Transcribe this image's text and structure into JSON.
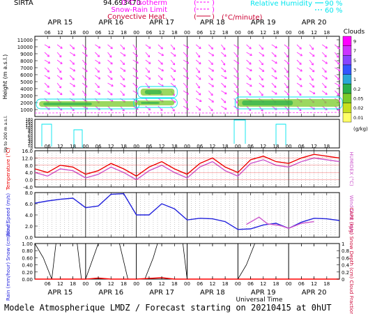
{
  "header": {
    "site": "SIRTA",
    "coords": "94.693470",
    "legend_mid": [
      {
        "text": "0°C Isotherm",
        "color": "#ff00ff"
      },
      {
        "text": "Snow-Rain Limit",
        "color": "#ff00ff"
      },
      {
        "text": "Convective Heat.",
        "color": "#cc0033"
      }
    ],
    "legend_mid_unit": "(°C/minute)",
    "legend_right": [
      {
        "text": "Relative Humidity",
        "value": "90 %",
        "color": "#00e5ee"
      },
      {
        "text": "",
        "value": "60 %",
        "color": "#00e5ee"
      }
    ]
  },
  "footer": "Modele Atmospherique LMDZ / Forecast starting on 20210415 at 0hUT",
  "time_axis": {
    "days": [
      "APR 15",
      "APR 16",
      "APR 17",
      "APR 18",
      "APR 19",
      "APR 20"
    ],
    "hours": [
      "06",
      "12",
      "18",
      "00"
    ],
    "xlabel": "Universal Time"
  },
  "chart_data": [
    {
      "type": "heatmap",
      "title": "Clouds",
      "ylabel": "Height (m a.s.l.)",
      "ylabel_low": "Up to 200 m a.s.l.",
      "yticks": [
        1000,
        2000,
        3000,
        4000,
        5000,
        6000,
        7000,
        8000,
        9000,
        10000,
        11000
      ],
      "yticks_low": [
        0,
        10,
        20,
        30,
        40,
        50,
        60,
        70,
        80,
        90,
        100,
        120,
        140,
        160,
        180
      ],
      "colorbar": {
        "title": "Clouds",
        "unit": "(g/kg)",
        "ticks": [
          "9",
          "7",
          "5",
          "3",
          "1",
          "0.2",
          "0.05",
          "0.02",
          "0.01"
        ],
        "colors": [
          "#ff00ff",
          "#cc33ff",
          "#8844ff",
          "#3355ff",
          "#2aa6d6",
          "#2ab04a",
          "#7acb2a",
          "#c8e01e",
          "#ffff66"
        ]
      },
      "cloud_layers": [
        {
          "start_h": 2,
          "end_h": 48,
          "bottom_m": 1400,
          "top_m": 2200
        },
        {
          "start_h": 50,
          "end_h": 66,
          "bottom_m": 3000,
          "top_m": 4000
        },
        {
          "start_h": 48,
          "end_h": 66,
          "bottom_m": 1600,
          "top_m": 2300
        },
        {
          "start_h": 96,
          "end_h": 144,
          "bottom_m": 1400,
          "top_m": 2500
        }
      ],
      "wind_arrows": "magenta, mostly pointing south-east at all heights"
    },
    {
      "type": "line",
      "ylabel": "Temperature (°C)",
      "ylabel_right": "HUMIDEX (°C)",
      "yticks": [
        -4.0,
        0.0,
        4.0,
        8.0,
        12.0,
        16.0
      ],
      "ylim": [
        -4,
        16
      ],
      "series": [
        {
          "name": "Temperature",
          "color": "#ee0000",
          "x": [
            0,
            6,
            12,
            18,
            24,
            30,
            36,
            42,
            48,
            54,
            60,
            66,
            72,
            78,
            84,
            90,
            96,
            102,
            108,
            114,
            120,
            126,
            132,
            138,
            144
          ],
          "values": [
            6,
            4,
            8,
            7,
            3,
            5,
            9,
            6,
            2,
            7,
            10,
            6,
            3,
            9,
            12,
            7,
            4,
            11,
            13,
            10,
            9,
            12,
            14,
            13,
            12
          ]
        },
        {
          "name": "HUMIDEX",
          "color": "#cc55cc",
          "x": [
            0,
            6,
            12,
            18,
            24,
            30,
            36,
            42,
            48,
            54,
            60,
            66,
            72,
            78,
            84,
            90,
            96,
            102,
            108,
            114,
            120,
            126,
            132,
            138,
            144
          ],
          "values": [
            4,
            2,
            6,
            5,
            1,
            3,
            7,
            4,
            0,
            5,
            8,
            4,
            1,
            7,
            10,
            5,
            2,
            9,
            11,
            8,
            7,
            10,
            12,
            11,
            10
          ]
        }
      ]
    },
    {
      "type": "line",
      "ylabel": "Wind Speed (m/s)",
      "ylabel_right": "Wind Gust (m/s)",
      "yticks": [
        0.0,
        2.0,
        4.0,
        6.0,
        8.0
      ],
      "ylim": [
        0,
        8
      ],
      "series": [
        {
          "name": "Wind Speed",
          "color": "#2222dd",
          "x": [
            0,
            6,
            12,
            18,
            24,
            30,
            36,
            42,
            48,
            54,
            60,
            66,
            72,
            78,
            84,
            90,
            96,
            102,
            108,
            114,
            120,
            126,
            132,
            138,
            144
          ],
          "values": [
            6.1,
            6.5,
            6.8,
            7.0,
            5.3,
            5.6,
            7.7,
            7.8,
            4.0,
            4.0,
            6.0,
            5.1,
            3.1,
            3.4,
            3.3,
            2.8,
            1.4,
            1.5,
            2.2,
            2.5,
            1.6,
            2.7,
            3.4,
            3.3,
            3.0
          ]
        },
        {
          "name": "Wind Gust",
          "color": "#cc55cc",
          "x": [
            100,
            106,
            110,
            116,
            120,
            126,
            132
          ],
          "values": [
            2.3,
            3.6,
            2.4,
            2.1,
            1.6,
            2.5,
            2.8
          ]
        }
      ]
    },
    {
      "type": "line",
      "ylabel": "Rain (mm/hour) Snow (cm/hour)",
      "ylabel_right": "CAPE (kJ/g) Snow Depth (cm) Cloud Fraction",
      "yticks_left": [
        0.0,
        0.2,
        0.4,
        0.6,
        0.8,
        1.0
      ],
      "yticks_right": [
        0,
        0.2,
        0.4,
        0.6,
        0.8,
        1.0
      ],
      "ylim": [
        0,
        1
      ],
      "series": [
        {
          "name": "Cloud Fraction",
          "color": "#000000",
          "x": [
            0,
            4,
            8,
            10,
            20,
            22,
            24,
            30,
            32,
            40,
            44,
            46,
            52,
            56,
            58,
            60,
            70,
            72,
            74,
            96,
            100,
            104,
            144
          ],
          "values": [
            1,
            0.6,
            0,
            1,
            1,
            0,
            0,
            1,
            1,
            1,
            0,
            0,
            0,
            0.6,
            1,
            1,
            1,
            0,
            0,
            0,
            0.4,
            1,
            1
          ]
        },
        {
          "name": "Rain",
          "color": "#ff0000",
          "x": [
            0,
            12,
            24,
            30,
            36,
            48,
            60,
            66,
            72,
            144
          ],
          "values": [
            0,
            0,
            0,
            0.03,
            0,
            0,
            0.04,
            0,
            0,
            0
          ]
        }
      ]
    }
  ]
}
